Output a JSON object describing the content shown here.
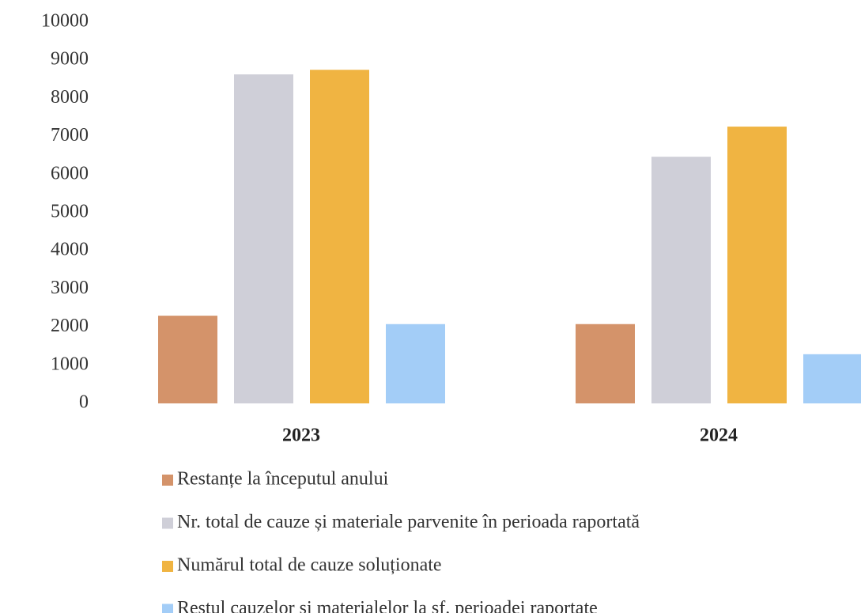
{
  "chart_data": {
    "type": "bar",
    "categories": [
      "2023",
      "2024"
    ],
    "series": [
      {
        "name": "Restanțe la începutul anului",
        "color": "#d4936a",
        "values": [
          2300,
          2080
        ]
      },
      {
        "name": "Nr. total de cauze și materiale parvenite în perioada raportată",
        "color": "#cfcfd8",
        "values": [
          8630,
          6470
        ]
      },
      {
        "name": "Numărul total de cauze soluționate",
        "color": "#f0b442",
        "values": [
          8750,
          7260
        ]
      },
      {
        "name": "Restul cauzelor și materialelor la sf. perioadei raportate",
        "color": "#a3cdf7",
        "values": [
          2080,
          1290
        ]
      }
    ],
    "ylim": [
      0,
      10000
    ],
    "yticks": [
      0,
      1000,
      2000,
      3000,
      4000,
      5000,
      6000,
      7000,
      8000,
      9000,
      10000
    ],
    "grid": false
  }
}
